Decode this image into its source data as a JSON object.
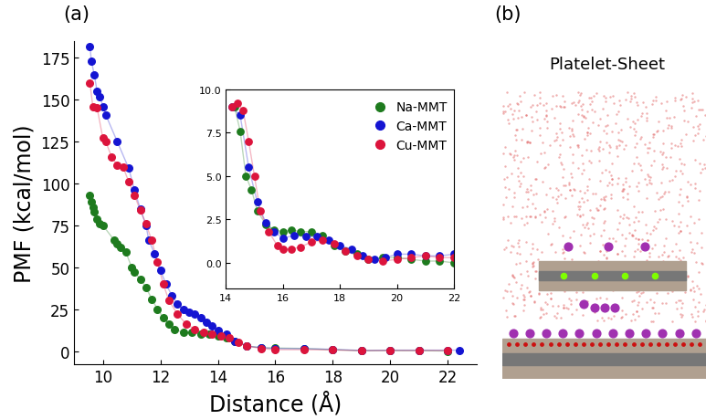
{
  "panel_labels": [
    "(a)",
    "(b)"
  ],
  "image_panel": {
    "title": "Platelet-Sheet"
  },
  "chart_data": [
    {
      "type": "scatter",
      "x_label": "Distance (Å)",
      "y_label": "PMF (kcal/mol)",
      "xlim": [
        9,
        23
      ],
      "xticks": [
        10,
        12,
        14,
        16,
        18,
        20,
        22
      ],
      "ylim": [
        -8,
        185
      ],
      "yticks": [
        0,
        25,
        50,
        75,
        100,
        125,
        150,
        175
      ],
      "series": [
        {
          "name": "Na-MMT",
          "color": "#1e7b1e",
          "x": [
            9.55,
            9.6,
            9.65,
            9.7,
            9.8,
            9.9,
            10.0,
            10.4,
            10.5,
            10.6,
            10.8,
            11.0,
            11.1,
            11.3,
            11.5,
            11.7,
            11.9,
            12.1,
            12.3,
            12.5,
            12.8,
            13.1,
            13.4,
            13.7,
            14.0,
            14.3,
            14.6,
            15.0,
            15.5,
            16,
            17,
            18,
            19,
            20,
            21,
            22
          ],
          "values": [
            93,
            89,
            86,
            83,
            79,
            76,
            75,
            66,
            64,
            62,
            59,
            50,
            47,
            43,
            38,
            31,
            25,
            20,
            16,
            13,
            11,
            11,
            10,
            10,
            9,
            8,
            6,
            3,
            2,
            1.8,
            1.5,
            0.8,
            0.2,
            0.3,
            0.2,
            0
          ]
        },
        {
          "name": "Ca-MMT",
          "color": "#1414d2",
          "x": [
            9.55,
            9.6,
            9.7,
            9.8,
            9.9,
            10.0,
            10.1,
            10.5,
            10.9,
            11.1,
            11.3,
            11.5,
            11.6,
            11.8,
            12.0,
            12.2,
            12.4,
            12.6,
            12.8,
            13.0,
            13.2,
            13.4,
            13.6,
            13.8,
            14.0,
            14.3,
            14.6,
            15,
            15.5,
            16,
            17,
            18,
            19,
            20,
            21,
            22,
            22.4
          ],
          "values": [
            182,
            173,
            165,
            155,
            152,
            146,
            141,
            125,
            109,
            96,
            85,
            75,
            66,
            58,
            48,
            40,
            33,
            28,
            25,
            23,
            22,
            20,
            17,
            15,
            12,
            10,
            6,
            3,
            2,
            1.5,
            1.4,
            1,
            0.3,
            0.5,
            0.5,
            0.5,
            0.5
          ]
        },
        {
          "name": "Cu-MMT",
          "color": "#dc143c",
          "x": [
            9.55,
            9.65,
            9.8,
            10.0,
            10.1,
            10.3,
            10.5,
            10.7,
            10.9,
            11.1,
            11.3,
            11.5,
            11.7,
            11.9,
            12.1,
            12.3,
            12.6,
            12.9,
            13.2,
            13.5,
            13.8,
            14.1,
            14.4,
            14.7,
            15.0,
            15.5,
            16,
            17,
            18,
            19,
            20,
            21,
            22
          ],
          "values": [
            160,
            146,
            145,
            127,
            125,
            116,
            111,
            110,
            101,
            93,
            84,
            76,
            66,
            53,
            40,
            30,
            22,
            16,
            13,
            11,
            10,
            9,
            8,
            5,
            3,
            1.5,
            0.8,
            0.8,
            0.6,
            0.2,
            0.3,
            0.3,
            0.3
          ]
        }
      ]
    },
    {
      "type": "scatter",
      "legend": "upper right",
      "xlim": [
        14,
        22
      ],
      "xticks": [
        14,
        16,
        18,
        20,
        22
      ],
      "ylim": [
        -1.5,
        10
      ],
      "yticks": [
        {
          "value": 0,
          "label": "0.0"
        },
        2.5,
        {
          "value": 5,
          "label": "5.0"
        },
        7.5,
        {
          "value": 10,
          "label": "10.0"
        }
      ],
      "series": [
        {
          "name": "Na-MMT",
          "color": "#1e7b1e",
          "x": [
            14.3,
            14.5,
            14.7,
            14.9,
            15.1,
            15.4,
            15.7,
            16,
            16.3,
            16.6,
            17,
            17.4,
            17.8,
            18.2,
            18.6,
            19,
            19.5,
            20,
            20.5,
            21,
            21.5,
            22
          ],
          "values": [
            9,
            7.6,
            5,
            4.2,
            3,
            2.2,
            1.9,
            1.8,
            1.9,
            1.8,
            1.8,
            1.6,
            1,
            0.7,
            0.5,
            0.2,
            0.3,
            0.3,
            0.2,
            0.1,
            0.1,
            0
          ]
        },
        {
          "name": "Ca-MMT",
          "color": "#1414d2",
          "x": [
            14.2,
            14.5,
            14.8,
            15.1,
            15.4,
            15.7,
            16,
            16.4,
            16.8,
            17.2,
            17.6,
            18,
            18.4,
            18.8,
            19.2,
            19.6,
            20,
            20.5,
            21,
            21.5,
            22
          ],
          "values": [
            9,
            8.5,
            5.5,
            3.5,
            2.3,
            1.8,
            1.4,
            1.6,
            1.5,
            1.5,
            1.3,
            1,
            0.8,
            0.4,
            0.2,
            0.3,
            0.5,
            0.5,
            0.4,
            0.4,
            0.5
          ]
        },
        {
          "name": "Cu-MMT",
          "color": "#dc143c",
          "x": [
            14.2,
            14.4,
            14.6,
            14.8,
            15.0,
            15.2,
            15.5,
            15.8,
            16.0,
            16.3,
            16.6,
            17,
            17.4,
            17.8,
            18.2,
            18.6,
            19,
            19.5,
            20,
            20.5,
            21,
            21.5,
            22
          ],
          "values": [
            9,
            9.2,
            8.8,
            7,
            5,
            3,
            1.8,
            1,
            0.8,
            0.8,
            0.9,
            1.2,
            1.3,
            1.1,
            0.7,
            0.4,
            0.2,
            0.1,
            0.2,
            0.3,
            0.4,
            0.3,
            0.3
          ]
        }
      ]
    }
  ]
}
